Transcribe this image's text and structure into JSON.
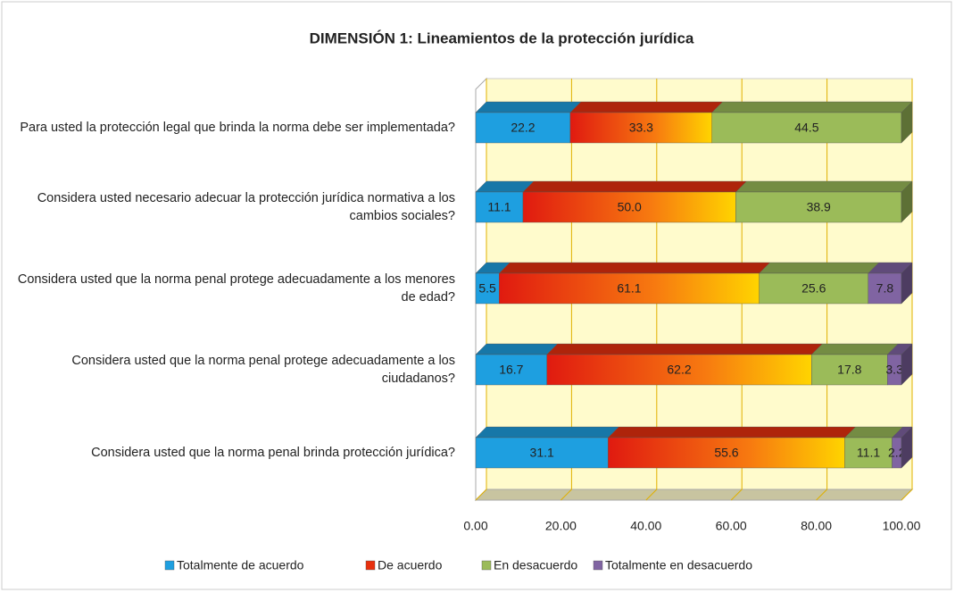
{
  "chart_data": {
    "type": "stacked-barh",
    "title": "DIMENSIÓN 1: Lineamientos de la protección jurídica",
    "categories": [
      "Para usted la protección legal que brinda la norma debe ser implementada?",
      "Considera usted necesario adecuar la protección jurídica normativa a los cambios sociales?",
      "Considera usted que la  norma penal protege adecuadamente a los menores de edad?",
      "Considera usted que la norma penal protege adecuadamente a los ciudadanos?",
      "Considera usted que la norma penal brinda protección jurídica?"
    ],
    "series": [
      {
        "name": "Totalmente de acuerdo",
        "color": "#1e9fe0",
        "values": [
          22.2,
          11.1,
          5.5,
          16.7,
          31.1
        ]
      },
      {
        "name": "De acuerdo",
        "color": "#e8300e",
        "values": [
          33.3,
          50,
          61.1,
          62.2,
          55.6
        ],
        "value_labels": [
          "33.3",
          "50.0",
          "61.1",
          "62.2",
          "55.6"
        ]
      },
      {
        "name": "En desacuerdo",
        "color": "#9bbb59",
        "values": [
          44.5,
          38.9,
          25.6,
          17.8,
          11.1
        ]
      },
      {
        "name": "Totalmente en desacuerdo",
        "color": "#8064a2",
        "values": [
          null,
          null,
          7.8,
          3.3,
          2.2
        ]
      }
    ],
    "xlim": [
      0,
      100
    ],
    "xticks": [
      {
        "value": 0,
        "label": "0.00"
      },
      {
        "value": 20,
        "label": "20.00"
      },
      {
        "value": 40,
        "label": "40.00"
      },
      {
        "value": 60,
        "label": "60.00"
      },
      {
        "value": 80,
        "label": "80.00"
      },
      {
        "value": 100,
        "label": "100.00"
      }
    ],
    "grid": true,
    "legend": "bottom"
  }
}
